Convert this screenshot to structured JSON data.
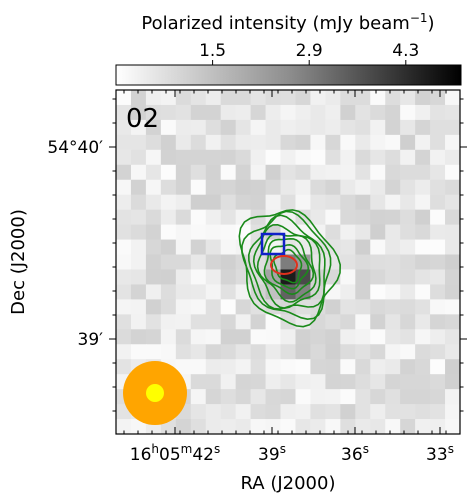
{
  "chart_data": {
    "type": "heatmap",
    "panel_label": "02",
    "colorbar": {
      "title_main": "Polarized intensity (mJy beam",
      "title_exp": "−1",
      "title_close": ")",
      "ticks": [
        "1.5",
        "2.9",
        "4.3"
      ],
      "tick_values": [
        1.5,
        2.9,
        4.3
      ],
      "range": [
        0.1,
        5.1
      ]
    },
    "xlabel": "RA (J2000)",
    "ylabel": "Dec (J2000)",
    "x_ticks": [
      {
        "value": "16h05m42s",
        "parts": [
          [
            "16",
            ""
          ],
          [
            "h",
            "sup"
          ],
          [
            "05",
            ""
          ],
          [
            "m",
            "sup"
          ],
          [
            "42",
            ""
          ],
          [
            "s",
            "sup"
          ]
        ]
      },
      {
        "value": "39s",
        "parts": [
          [
            "39",
            ""
          ],
          [
            "s",
            "sup"
          ]
        ]
      },
      {
        "value": "36s",
        "parts": [
          [
            "36",
            ""
          ],
          [
            "s",
            "sup"
          ]
        ]
      },
      {
        "value": "33s",
        "parts": [
          [
            "33",
            ""
          ],
          [
            "s",
            "sup"
          ]
        ]
      }
    ],
    "y_ticks": [
      "54°40′",
      "39′"
    ],
    "image": {
      "grid_cols": 23,
      "grid_rows": 23,
      "peak_intensity": 4.8,
      "peak_position": {
        "col": 11.8,
        "row": 12.6
      }
    },
    "contours": {
      "color": "#1a8a1a",
      "levels": 8
    },
    "markers": [
      {
        "type": "square",
        "color": "#1020c8"
      },
      {
        "type": "ellipse",
        "color": "#e0301c"
      },
      {
        "type": "beam",
        "color": "#ffa500",
        "inner_color": "#ffff00"
      }
    ]
  }
}
